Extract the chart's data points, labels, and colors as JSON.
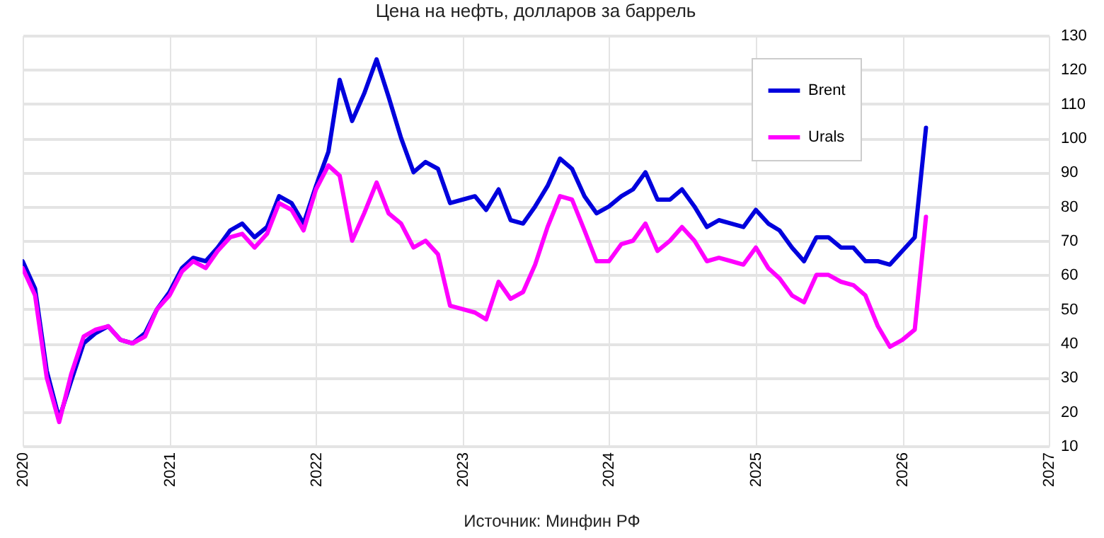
{
  "chart_data": {
    "type": "line",
    "title": "Цена на нефть, долларов за баррель",
    "annotations": [
      "Источник: Минфин РФ"
    ],
    "x": [
      "2020-01",
      "2020-02",
      "2020-03",
      "2020-04",
      "2020-05",
      "2020-06",
      "2020-07",
      "2020-08",
      "2020-09",
      "2020-10",
      "2020-11",
      "2020-12",
      "2021-01",
      "2021-02",
      "2021-03",
      "2021-04",
      "2021-05",
      "2021-06",
      "2021-07",
      "2021-08",
      "2021-09",
      "2021-10",
      "2021-11",
      "2021-12",
      "2022-01",
      "2022-02",
      "2022-03",
      "2022-04",
      "2022-05",
      "2022-06",
      "2022-07",
      "2022-08",
      "2022-09",
      "2022-10",
      "2022-11",
      "2022-12",
      "2023-01",
      "2023-02",
      "2023-03",
      "2023-04",
      "2023-05",
      "2023-06",
      "2023-07",
      "2023-08",
      "2023-09",
      "2023-10",
      "2023-11",
      "2023-12",
      "2024-01",
      "2024-02",
      "2024-03",
      "2024-04",
      "2024-05",
      "2024-06",
      "2024-07",
      "2024-08",
      "2024-09",
      "2024-10",
      "2024-11",
      "2024-12",
      "2025-01",
      "2025-02",
      "2025-03",
      "2025-04",
      "2025-05",
      "2025-06",
      "2025-07",
      "2025-08",
      "2025-09",
      "2025-10",
      "2025-11",
      "2025-12",
      "2026-01",
      "2026-02",
      "2026-03"
    ],
    "series": [
      {
        "name": "Brent",
        "color": "#0000dd",
        "values": [
          64,
          56,
          32,
          18,
          29,
          40,
          43,
          45,
          41,
          40,
          43,
          50,
          55,
          62,
          65,
          64,
          68,
          73,
          75,
          71,
          74,
          83,
          81,
          75,
          86,
          96,
          117,
          105,
          113,
          123,
          112,
          100,
          90,
          93,
          91,
          81,
          82,
          83,
          79,
          85,
          76,
          75,
          80,
          86,
          94,
          91,
          83,
          78,
          80,
          83,
          85,
          90,
          82,
          82,
          85,
          80,
          74,
          76,
          75,
          74,
          79,
          75,
          73,
          68,
          64,
          71,
          71,
          68,
          68,
          64,
          64,
          63,
          67,
          71,
          103
        ]
      },
      {
        "name": "Urals",
        "color": "#ff00ff",
        "values": [
          62,
          54,
          30,
          17,
          31,
          42,
          44,
          45,
          41,
          40,
          42,
          50,
          54,
          61,
          64,
          62,
          67,
          71,
          72,
          68,
          72,
          81,
          79,
          73,
          85,
          92,
          89,
          70,
          78,
          87,
          78,
          75,
          68,
          70,
          66,
          51,
          50,
          49,
          47,
          58,
          53,
          55,
          63,
          74,
          83,
          82,
          73,
          64,
          64,
          69,
          70,
          75,
          67,
          70,
          74,
          70,
          64,
          65,
          64,
          63,
          68,
          62,
          59,
          54,
          52,
          60,
          60,
          58,
          57,
          54,
          45,
          39,
          41,
          44,
          77
        ]
      }
    ],
    "xlim": [
      "2020-01",
      "2027-01"
    ],
    "xticks": [
      "2020",
      "2021",
      "2022",
      "2023",
      "2024",
      "2025",
      "2026",
      "2027"
    ],
    "ylim": [
      10,
      130
    ],
    "yticks": [
      10,
      20,
      30,
      40,
      50,
      60,
      70,
      80,
      90,
      100,
      110,
      120,
      130
    ],
    "grid": true,
    "legend": "top right"
  }
}
